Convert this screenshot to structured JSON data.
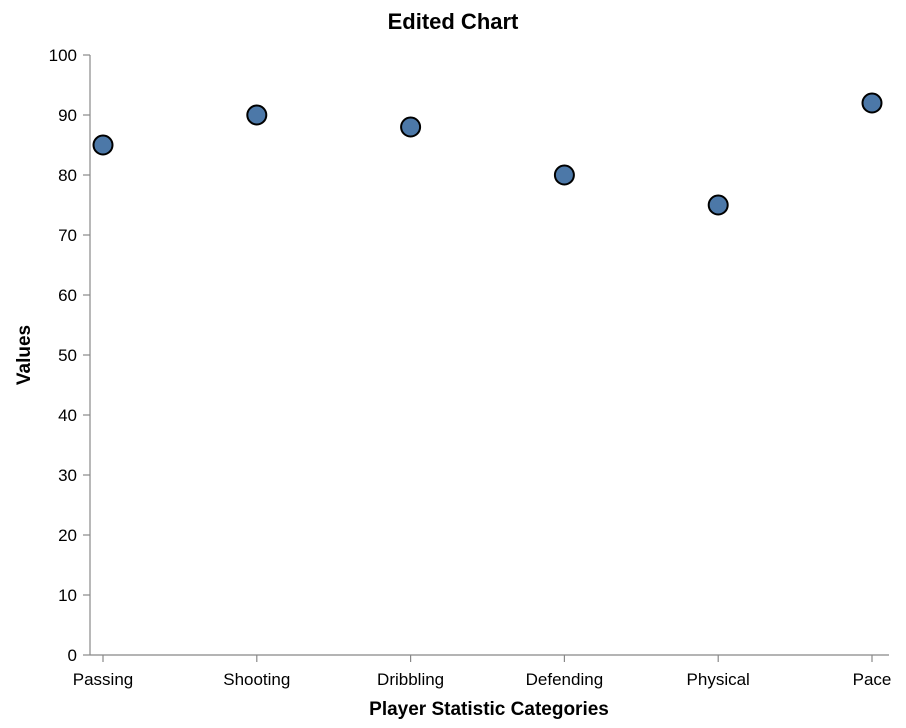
{
  "chart_data": {
    "type": "scatter",
    "title": "Edited Chart",
    "xlabel": "Player Statistic Categories",
    "ylabel": "Values",
    "categories": [
      "Passing",
      "Shooting",
      "Dribbling",
      "Defending",
      "Physical",
      "Pace"
    ],
    "values": [
      85,
      90,
      88,
      80,
      75,
      92
    ],
    "ylim": [
      0,
      100
    ],
    "yticks": [
      0,
      10,
      20,
      30,
      40,
      50,
      60,
      70,
      80,
      90,
      100
    ],
    "grid": false,
    "point_color": "#4c78a8",
    "axis_color": "#888888"
  }
}
